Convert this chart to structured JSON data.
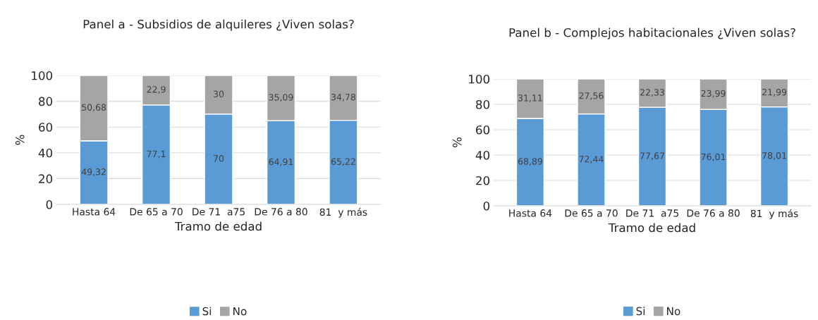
{
  "chart_data": [
    {
      "type": "bar",
      "title": "Panel a - Subsidios de alquileres ¿Viven solas?",
      "xlabel": "Tramo de edad",
      "ylabel": "%",
      "categories": [
        "Hasta 64",
        "De 65 a 70",
        "De 71  a75",
        "De 76 a 80",
        "81  y más"
      ],
      "stacked": true,
      "ylim": [
        0,
        100
      ],
      "yticks": [
        0,
        20,
        40,
        60,
        80,
        100
      ],
      "grid": "y",
      "legend": "bottom",
      "series": [
        {
          "name": "Si",
          "color": "#5b9bd5",
          "values": [
            49.32,
            77.1,
            70,
            64.91,
            65.22
          ],
          "value_labels": [
            "49,32",
            "77,1",
            "70",
            "64,91",
            "65,22"
          ]
        },
        {
          "name": "No",
          "color": "#a5a5a5",
          "values": [
            50.68,
            22.9,
            30,
            35.09,
            34.78
          ],
          "value_labels": [
            "50,68",
            "22,9",
            "30",
            "35,09",
            "34,78"
          ]
        }
      ]
    },
    {
      "type": "bar",
      "title": "Panel b - Complejos habitacionales ¿Viven solas?",
      "xlabel": "Tramo de edad",
      "ylabel": "%",
      "categories": [
        "Hasta 64",
        "De 65 a 70",
        "De 71  a75",
        "De 76 a 80",
        "81  y más"
      ],
      "stacked": true,
      "ylim": [
        0,
        100
      ],
      "yticks": [
        0,
        20,
        40,
        60,
        80,
        100
      ],
      "grid": "y",
      "legend": "bottom",
      "series": [
        {
          "name": "Si",
          "color": "#5b9bd5",
          "values": [
            68.89,
            72.44,
            77.67,
            76.01,
            78.01
          ],
          "value_labels": [
            "68,89",
            "72,44",
            "77,67",
            "76,01",
            "78,01"
          ]
        },
        {
          "name": "No",
          "color": "#a5a5a5",
          "values": [
            31.11,
            27.56,
            22.33,
            23.99,
            21.99
          ],
          "value_labels": [
            "31,11",
            "27,56",
            "22,33",
            "23,99",
            "21,99"
          ]
        }
      ]
    }
  ]
}
